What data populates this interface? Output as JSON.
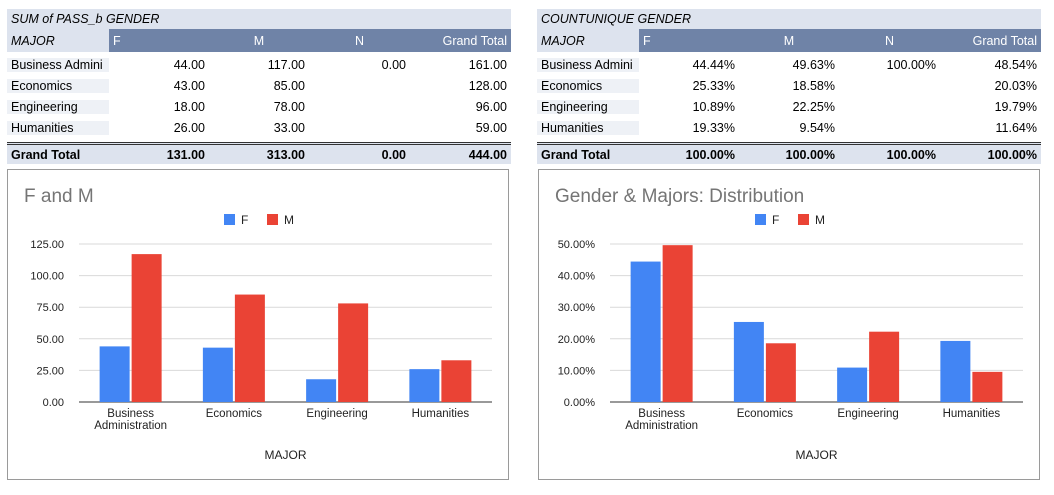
{
  "colors": {
    "F": "#4285f4",
    "M": "#ea4335",
    "header": "#6f83a7",
    "band": "#dde3ee"
  },
  "pivots": [
    {
      "title": "SUM of PASS_b GENDER",
      "row_label": "MAJOR",
      "columns": [
        "F",
        "M",
        "N",
        "Grand Total"
      ],
      "rows": [
        {
          "label": "Business Admini",
          "cells": [
            "44.00",
            "117.00",
            "0.00",
            "161.00"
          ]
        },
        {
          "label": "Economics",
          "cells": [
            "43.00",
            "85.00",
            "",
            "128.00"
          ]
        },
        {
          "label": "Engineering",
          "cells": [
            "18.00",
            "78.00",
            "",
            "96.00"
          ]
        },
        {
          "label": "Humanities",
          "cells": [
            "26.00",
            "33.00",
            "",
            "59.00"
          ]
        }
      ],
      "total": {
        "label": "Grand Total",
        "cells": [
          "131.00",
          "313.00",
          "0.00",
          "444.00"
        ]
      }
    },
    {
      "title": "COUNTUNIQUE GENDER",
      "row_label": "MAJOR",
      "columns": [
        "F",
        "M",
        "N",
        "Grand Total"
      ],
      "rows": [
        {
          "label": "Business Admini",
          "cells": [
            "44.44%",
            "49.63%",
            "100.00%",
            "48.54%"
          ]
        },
        {
          "label": "Economics",
          "cells": [
            "25.33%",
            "18.58%",
            "",
            "20.03%"
          ]
        },
        {
          "label": "Engineering",
          "cells": [
            "10.89%",
            "22.25%",
            "",
            "19.79%"
          ]
        },
        {
          "label": "Humanities",
          "cells": [
            "19.33%",
            "9.54%",
            "",
            "11.64%"
          ]
        }
      ],
      "total": {
        "label": "Grand Total",
        "cells": [
          "100.00%",
          "100.00%",
          "100.00%",
          "100.00%"
        ]
      }
    }
  ],
  "chart_data": [
    {
      "type": "bar",
      "title": "F and M",
      "xlabel": "MAJOR",
      "ylabel": "",
      "categories": [
        [
          "Business",
          "Administration"
        ],
        [
          "Economics"
        ],
        [
          "Engineering"
        ],
        [
          "Humanities"
        ]
      ],
      "series": [
        {
          "name": "F",
          "values": [
            44,
            43,
            18,
            26
          ]
        },
        {
          "name": "M",
          "values": [
            117,
            85,
            78,
            33
          ]
        }
      ],
      "ylim": [
        0,
        125
      ],
      "yticks": [
        0,
        25,
        50,
        75,
        100,
        125
      ],
      "ytick_labels": [
        "0.00",
        "25.00",
        "50.00",
        "75.00",
        "100.00",
        "125.00"
      ],
      "grid": true,
      "legend": "top-center"
    },
    {
      "type": "bar",
      "title": "Gender & Majors: Distribution",
      "xlabel": "MAJOR",
      "ylabel": "",
      "categories": [
        [
          "Business",
          "Administration"
        ],
        [
          "Economics"
        ],
        [
          "Engineering"
        ],
        [
          "Humanities"
        ]
      ],
      "series": [
        {
          "name": "F",
          "values": [
            44.44,
            25.33,
            10.89,
            19.33
          ]
        },
        {
          "name": "M",
          "values": [
            49.63,
            18.58,
            22.25,
            9.54
          ]
        }
      ],
      "ylim": [
        0,
        50
      ],
      "yticks": [
        0,
        10,
        20,
        30,
        40,
        50
      ],
      "ytick_labels": [
        "0.00%",
        "10.00%",
        "20.00%",
        "30.00%",
        "40.00%",
        "50.00%"
      ],
      "grid": true,
      "legend": "top-center"
    }
  ]
}
